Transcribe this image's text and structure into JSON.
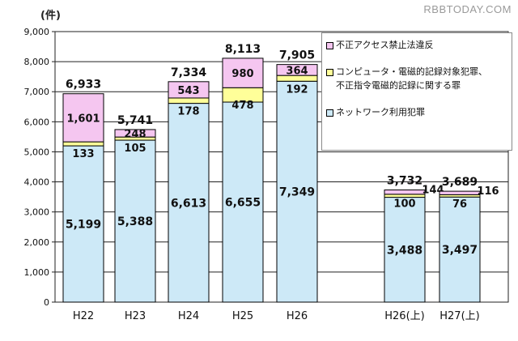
{
  "watermark": "RBBTODAY.COM",
  "unit_label": "(件)",
  "legend": [
    {
      "label": "不正アクセス禁止法違反",
      "color": "#f5c6f0"
    },
    {
      "label": "コンピュータ・電磁的記録対象犯罪、\n不正指令電磁的記録に関する罪",
      "color": "#ffff99"
    },
    {
      "label": "ネットワーク利用犯罪",
      "color": "#cde9f7"
    }
  ],
  "chart_data": {
    "type": "bar",
    "stacked": true,
    "categories": [
      "H22",
      "H23",
      "H24",
      "H25",
      "H26",
      "H26(上)",
      "H27(上)"
    ],
    "series": [
      {
        "name": "ネットワーク利用犯罪",
        "color": "#cde9f7",
        "values": [
          5199,
          5388,
          6613,
          6655,
          7349,
          3488,
          3497
        ],
        "labels": [
          "5,199",
          "5,388",
          "6,613",
          "6,655",
          "7,349",
          "3,488",
          "3,497"
        ]
      },
      {
        "name": "コンピュータ・電磁的記録対象犯罪、不正指令電磁的記録に関する罪",
        "color": "#ffff99",
        "values": [
          133,
          105,
          178,
          478,
          192,
          100,
          76
        ],
        "labels": [
          "133",
          "105",
          "178",
          "478",
          "192",
          "100",
          "76"
        ]
      },
      {
        "name": "不正アクセス禁止法違反",
        "color": "#f5c6f0",
        "values": [
          1601,
          248,
          543,
          980,
          364,
          144,
          116
        ],
        "labels": [
          "1,601",
          "248",
          "543",
          "980",
          "364",
          "144",
          "116"
        ]
      }
    ],
    "totals": [
      "6,933",
      "5,741",
      "7,334",
      "8,113",
      "7,905",
      "3,732",
      "3,689"
    ],
    "ylim": [
      0,
      9000
    ],
    "yticks": [
      "0",
      "1,000",
      "2,000",
      "3,000",
      "4,000",
      "5,000",
      "6,000",
      "7,000",
      "8,000",
      "9,000"
    ],
    "grid": true,
    "legend_position": "right"
  }
}
